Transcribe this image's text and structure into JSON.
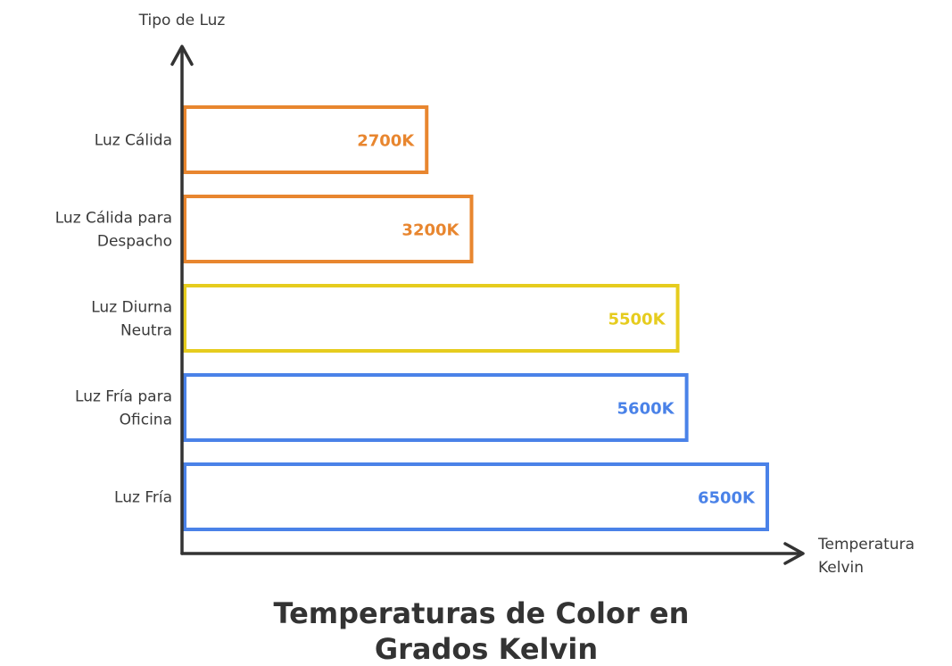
{
  "chart_data": {
    "type": "bar",
    "orientation": "horizontal",
    "title_lines": [
      "Temperaturas de Color en",
      "Grados Kelvin"
    ],
    "ylabel": "Tipo de Luz",
    "xlabel_lines": [
      "Temperatura",
      "Kelvin"
    ],
    "categories": [
      {
        "lines": [
          "Luz Cálida"
        ]
      },
      {
        "lines": [
          "Luz Cálida para",
          "Despacho"
        ]
      },
      {
        "lines": [
          "Luz Diurna",
          "Neutra"
        ]
      },
      {
        "lines": [
          "Luz Fría para",
          "Oficina"
        ]
      },
      {
        "lines": [
          "Luz Fría"
        ]
      }
    ],
    "values": [
      2700,
      3200,
      5500,
      5600,
      6500
    ],
    "value_labels": [
      "2700K",
      "3200K",
      "5500K",
      "5600K",
      "6500K"
    ],
    "colors": [
      "#e8862f",
      "#e8862f",
      "#e6cc1e",
      "#4a82e8",
      "#4a82e8"
    ],
    "xlim": [
      0,
      6500
    ],
    "grid": false,
    "legend": "none"
  }
}
